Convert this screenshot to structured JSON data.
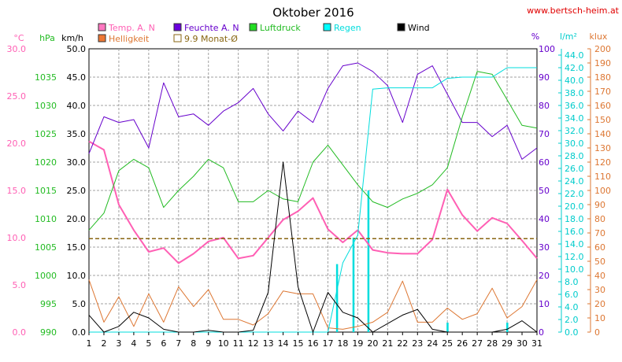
{
  "chart_data": {
    "type": "line",
    "title": "Oktober 2016",
    "source_label": "www.bertsch-heim.at",
    "days": [
      1,
      2,
      3,
      4,
      5,
      6,
      7,
      8,
      9,
      10,
      11,
      12,
      13,
      14,
      15,
      16,
      17,
      18,
      19,
      20,
      21,
      22,
      23,
      24,
      25,
      26,
      27,
      28,
      29,
      30,
      31
    ],
    "axes": {
      "temp": {
        "unit": "°C",
        "color": "#ff5fb4",
        "min": 0,
        "max": 30,
        "ticks": [
          0.0,
          5.0,
          10.0,
          15.0,
          20.0,
          25.0,
          30.0
        ]
      },
      "pressure": {
        "unit": "hPa",
        "color": "#22bb22",
        "min": 990,
        "max": 1040,
        "ticks": [
          990,
          995,
          1000,
          1005,
          1010,
          1015,
          1020,
          1025,
          1030,
          1035
        ]
      },
      "wind": {
        "unit": "km/h",
        "color": "#000000",
        "min": 0,
        "max": 50,
        "ticks": [
          0.0,
          5.0,
          10.0,
          15.0,
          20.0,
          25.0,
          30.0,
          35.0,
          40.0,
          45.0,
          50.0
        ]
      },
      "humidity": {
        "unit": "%",
        "color": "#6600cc",
        "min": 0,
        "max": 100,
        "ticks": [
          0,
          10,
          20,
          30,
          40,
          50,
          60,
          70,
          80,
          90,
          100
        ]
      },
      "rain": {
        "unit": "l/m²",
        "color": "#00cccc",
        "min": 0,
        "max": 45,
        "ticks": [
          0.0,
          2.0,
          4.0,
          6.0,
          8.0,
          10.0,
          12.0,
          14.0,
          16.0,
          18.0,
          20.0,
          22.0,
          24.0,
          26.0,
          28.0,
          30.0,
          32.0,
          34.0,
          36.0,
          38.0,
          40.0,
          42.0,
          44.0
        ]
      },
      "light": {
        "unit": "klux",
        "color": "#dd7733",
        "min": 0,
        "max": 200,
        "ticks": [
          0,
          10,
          20,
          30,
          40,
          50,
          60,
          70,
          80,
          90,
          100,
          110,
          120,
          130,
          140,
          150,
          160,
          170,
          180,
          190,
          200
        ]
      }
    },
    "series": [
      {
        "name": "Temp. A. N",
        "axis": "temp",
        "color": "#ff5fb4",
        "width": 2,
        "values": [
          20.2,
          19.3,
          13.5,
          10.8,
          8.5,
          8.9,
          7.3,
          8.3,
          9.6,
          10.0,
          7.8,
          8.1,
          10.0,
          11.9,
          12.8,
          14.2,
          10.9,
          9.5,
          10.8,
          8.7,
          8.4,
          8.3,
          8.3,
          9.8,
          15.1,
          12.4,
          10.7,
          12.1,
          11.5,
          9.7,
          7.8
        ]
      },
      {
        "name": "Helligkeit",
        "axis": "light",
        "color": "#dd7733",
        "width": 1,
        "values": [
          37,
          7,
          25,
          4,
          27,
          7,
          32,
          18,
          30,
          9,
          9,
          5,
          13,
          29,
          27,
          27,
          3,
          2,
          4,
          7,
          14,
          36,
          7,
          7,
          17,
          9,
          13,
          31,
          10,
          18,
          37
        ]
      },
      {
        "name": "Feuchte A. N",
        "axis": "humidity",
        "color": "#6600cc",
        "width": 1,
        "values": [
          63,
          76,
          74,
          75,
          65,
          88,
          76,
          77,
          73,
          78,
          81,
          86,
          77,
          71,
          78,
          74,
          86,
          94,
          95,
          92,
          87,
          74,
          91,
          94,
          84,
          74,
          74,
          69,
          73,
          61,
          65
        ]
      },
      {
        "name": "9.9 Monat-Ø",
        "axis": "temp",
        "color": "#886611",
        "width": 1.5,
        "dash": "5,3",
        "values": [
          9.9,
          9.9,
          9.9,
          9.9,
          9.9,
          9.9,
          9.9,
          9.9,
          9.9,
          9.9,
          9.9,
          9.9,
          9.9,
          9.9,
          9.9,
          9.9,
          9.9,
          9.9,
          9.9,
          9.9,
          9.9,
          9.9,
          9.9,
          9.9,
          9.9,
          9.9,
          9.9,
          9.9,
          9.9,
          9.9,
          9.9
        ]
      },
      {
        "name": "Luftdruck",
        "axis": "pressure",
        "color": "#22bb22",
        "width": 1,
        "values": [
          1008,
          1011,
          1018.5,
          1020.5,
          1019,
          1012,
          1015,
          1017.5,
          1020.5,
          1019,
          1013,
          1013,
          1015,
          1013.5,
          1013,
          1020,
          1023,
          1019.5,
          1016,
          1013,
          1012,
          1013.5,
          1014.5,
          1016,
          1019,
          1028,
          1036,
          1035.5,
          1031,
          1026.5,
          1026
        ]
      },
      {
        "name": "Regen",
        "axis": "rain",
        "color": "#00dddd",
        "width": 1,
        "values": [
          0,
          0,
          0,
          0,
          0,
          0,
          0,
          0,
          0,
          0,
          0,
          0,
          0,
          0,
          0,
          0,
          0,
          11,
          15.4,
          38.6,
          38.8,
          38.8,
          38.8,
          38.8,
          40.3,
          40.5,
          40.5,
          40.5,
          42.0,
          42.0,
          42.0
        ]
      },
      {
        "name": "Wind",
        "axis": "wind",
        "color": "#000000",
        "width": 1,
        "values": [
          3,
          0,
          1,
          3.5,
          2.5,
          0.5,
          0,
          0,
          0.3,
          0,
          0,
          0.3,
          7,
          30,
          8,
          0,
          7,
          3.5,
          2.5,
          0,
          1.5,
          3,
          4,
          0.5,
          0,
          0,
          0,
          0,
          0.5,
          2,
          0
        ]
      }
    ],
    "rain_bars": [
      {
        "day": 17.6,
        "value": 10.8
      },
      {
        "day": 18.7,
        "value": 15.0
      },
      {
        "day": 19.7,
        "value": 22.5
      },
      {
        "day": 25.0,
        "value": 1.5
      },
      {
        "day": 29.0,
        "value": 1.5
      }
    ],
    "grid": true,
    "legend_location": "top"
  }
}
